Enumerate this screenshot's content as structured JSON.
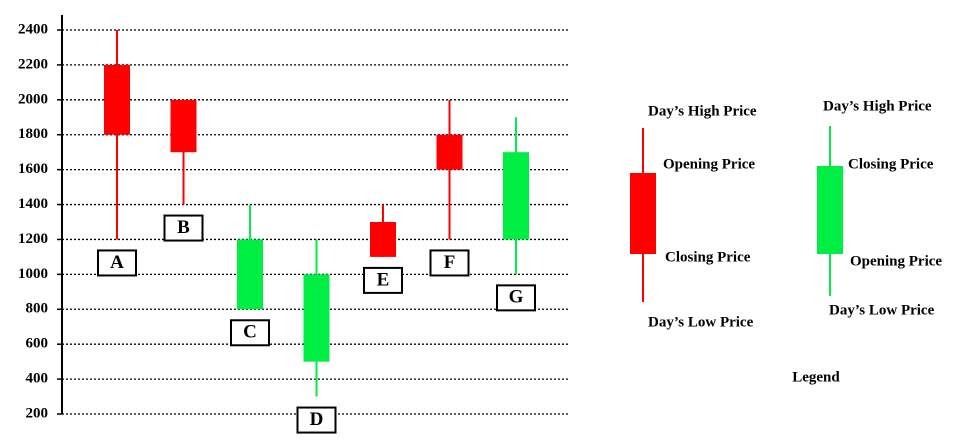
{
  "chart_data": {
    "type": "candlestick",
    "categories": [
      "A",
      "B",
      "C",
      "D",
      "E",
      "F",
      "G"
    ],
    "open": [
      2200,
      2000,
      800,
      500,
      1300,
      1800,
      1200
    ],
    "high": [
      2400,
      2000,
      1400,
      1200,
      1400,
      2000,
      1900
    ],
    "low": [
      1200,
      1400,
      800,
      300,
      1100,
      1200,
      1000
    ],
    "close": [
      1800,
      1700,
      1200,
      1000,
      1100,
      1600,
      1700
    ],
    "up_color": "#00ee44",
    "down_color": "#ff0000",
    "ylim": [
      200,
      2400
    ],
    "yticks": [
      200,
      400,
      600,
      800,
      1000,
      1200,
      1400,
      1600,
      1800,
      2000,
      2200,
      2400
    ],
    "grid": true
  },
  "legend": {
    "title": "Legend",
    "down": {
      "high": "Day’s High Price",
      "open": "Opening Price",
      "close": "Closing Price",
      "low": "Day’s Low Price"
    },
    "up": {
      "high": "Day’s High Price",
      "close": "Closing Price",
      "open": "Opening Price",
      "low": "Day’s Low Price"
    }
  }
}
